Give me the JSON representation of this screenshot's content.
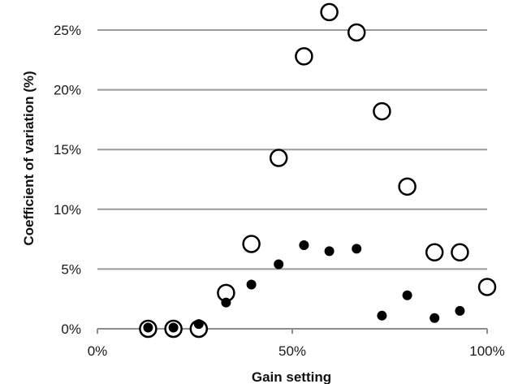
{
  "chart_data": {
    "type": "scatter",
    "title": "",
    "xlabel": "Gain setting",
    "ylabel": "Coefficient of variation (%)",
    "xlim": [
      0,
      100
    ],
    "ylim": [
      0,
      27.5
    ],
    "x_ticks": [
      0,
      50,
      100
    ],
    "x_tick_labels": [
      "0%",
      "50%",
      "100%"
    ],
    "y_ticks": [
      0,
      5,
      10,
      15,
      20,
      25
    ],
    "y_tick_labels": [
      "0%",
      "5%",
      "10%",
      "15%",
      "20%",
      "25%"
    ],
    "grid": "horizontal",
    "legend": "none",
    "series": [
      {
        "marker": "open-circle",
        "color": "#000000",
        "points": [
          {
            "x": 13,
            "y": 0.0
          },
          {
            "x": 19.5,
            "y": 0.0
          },
          {
            "x": 26,
            "y": 0.0
          },
          {
            "x": 33,
            "y": 3.0
          },
          {
            "x": 39.5,
            "y": 7.1
          },
          {
            "x": 46.5,
            "y": 14.3
          },
          {
            "x": 53,
            "y": 22.8
          },
          {
            "x": 59.5,
            "y": 26.5
          },
          {
            "x": 66.5,
            "y": 24.8
          },
          {
            "x": 73,
            "y": 18.2
          },
          {
            "x": 79.5,
            "y": 11.9
          },
          {
            "x": 86.5,
            "y": 6.4
          },
          {
            "x": 93,
            "y": 6.4
          },
          {
            "x": 100,
            "y": 3.5
          }
        ]
      },
      {
        "marker": "filled-circle",
        "color": "#000000",
        "points": [
          {
            "x": 13,
            "y": 0.1
          },
          {
            "x": 19.5,
            "y": 0.1
          },
          {
            "x": 26,
            "y": 0.4
          },
          {
            "x": 33,
            "y": 2.2
          },
          {
            "x": 39.5,
            "y": 3.7
          },
          {
            "x": 46.5,
            "y": 5.4
          },
          {
            "x": 53,
            "y": 7.0
          },
          {
            "x": 59.5,
            "y": 6.5
          },
          {
            "x": 66.5,
            "y": 6.7
          },
          {
            "x": 73,
            "y": 1.1
          },
          {
            "x": 79.5,
            "y": 2.8
          },
          {
            "x": 86.5,
            "y": 0.9
          },
          {
            "x": 93,
            "y": 1.5
          }
        ]
      }
    ]
  }
}
